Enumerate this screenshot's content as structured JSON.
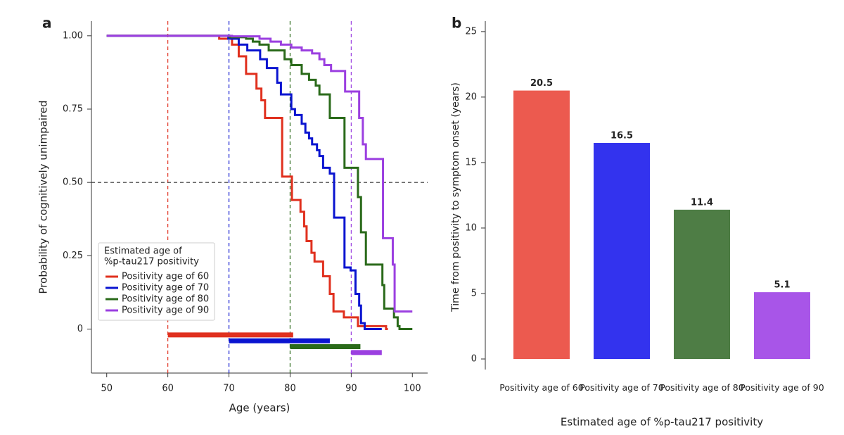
{
  "chart_data": [
    {
      "type": "line",
      "panel": "a",
      "step": "post",
      "xlabel": "Age (years)",
      "ylabel": "Probability of cognitively unimpaired",
      "xlim": [
        47.5,
        102.5
      ],
      "ylim": [
        -0.15,
        1.05
      ],
      "xticks": [
        50,
        60,
        70,
        80,
        90,
        100
      ],
      "yticks": [
        0,
        0.25,
        {
          "value": 0.5,
          "label": "0.50"
        },
        0.75,
        {
          "value": 1,
          "label": "1.00"
        }
      ],
      "hline": 0.5,
      "legend": "lower left",
      "legend_title": [
        "Estimated age of",
        "%p-tau217 positivity"
      ],
      "series": [
        {
          "name": "Positivity age of 60",
          "color": "#e0301e",
          "vline": 60,
          "range": [
            60,
            80.5
          ],
          "x": [
            50,
            68.4,
            70.5,
            71.6,
            72.8,
            74.5,
            75.3,
            75.9,
            78.7,
            80.3,
            81.7,
            82.3,
            82.7,
            83.5,
            84.0,
            85.4,
            86.5,
            87.1,
            88.8,
            91.1,
            95.7,
            96
          ],
          "values": [
            1,
            0.99,
            0.97,
            0.93,
            0.87,
            0.82,
            0.78,
            0.72,
            0.52,
            0.44,
            0.4,
            0.35,
            0.3,
            0.26,
            0.23,
            0.18,
            0.12,
            0.06,
            0.04,
            0.01,
            0,
            0
          ]
        },
        {
          "name": "Positivity age of 70",
          "color": "#0a14d0",
          "vline": 70,
          "range": [
            70,
            86.5
          ],
          "x": [
            50,
            69.9,
            71.6,
            73.0,
            75.1,
            76.2,
            77.9,
            78.5,
            80.2,
            80.8,
            81.9,
            82.5,
            83.1,
            83.6,
            84.4,
            84.8,
            85.4,
            86.5,
            87.2,
            88.9,
            89.9,
            90.7,
            91.3,
            91.6,
            92.2,
            95
          ],
          "values": [
            1,
            0.99,
            0.97,
            0.95,
            0.92,
            0.89,
            0.84,
            0.8,
            0.75,
            0.73,
            0.7,
            0.67,
            0.65,
            0.63,
            0.61,
            0.59,
            0.55,
            0.53,
            0.38,
            0.21,
            0.2,
            0.12,
            0.08,
            0.02,
            0,
            0
          ]
        },
        {
          "name": "Positivity age of 80",
          "color": "#2a6a1a",
          "vline": 80,
          "range": [
            80,
            91.5
          ],
          "x": [
            50,
            70.1,
            72.8,
            73.9,
            75.0,
            76.5,
            79.1,
            80.2,
            81.9,
            83.1,
            84.2,
            84.8,
            86.5,
            88.9,
            91.1,
            91.6,
            92.4,
            95.1,
            95.4,
            97.0,
            97.6,
            97.9,
            100
          ],
          "values": [
            1,
            0.995,
            0.99,
            0.98,
            0.97,
            0.95,
            0.92,
            0.9,
            0.87,
            0.85,
            0.83,
            0.8,
            0.72,
            0.55,
            0.45,
            0.33,
            0.22,
            0.15,
            0.07,
            0.04,
            0.01,
            0,
            0
          ]
        },
        {
          "name": "Positivity age of 90",
          "color": "#9b3fe0",
          "vline": 90,
          "range": [
            90,
            95
          ],
          "x": [
            50,
            70.5,
            75.0,
            76.8,
            78.5,
            80.2,
            81.9,
            83.6,
            84.8,
            85.6,
            86.7,
            89.0,
            91.3,
            91.9,
            92.4,
            95.2,
            96.8,
            97.1,
            100
          ],
          "values": [
            1,
            0.998,
            0.99,
            0.98,
            0.97,
            0.96,
            0.95,
            0.94,
            0.92,
            0.9,
            0.88,
            0.81,
            0.72,
            0.63,
            0.58,
            0.31,
            0.22,
            0.06,
            0.06
          ]
        }
      ]
    },
    {
      "type": "bar",
      "panel": "b",
      "xlabel": "Estimated age of %p-tau217 positivity",
      "ylabel": "Time from positivity to symptom onset (years)",
      "categories": [
        "Positivity age of 60",
        "Positivity age of 70",
        "Positivity age of 80",
        "Positivity age of 90"
      ],
      "values": [
        20.5,
        16.5,
        11.4,
        5.1
      ],
      "colors": [
        "#ec5a4f",
        "#3333ee",
        "#4e7d45",
        "#a855e8"
      ],
      "ylim": [
        0,
        25.8
      ],
      "yticks": [
        0,
        5,
        10,
        15,
        20,
        25
      ]
    }
  ]
}
